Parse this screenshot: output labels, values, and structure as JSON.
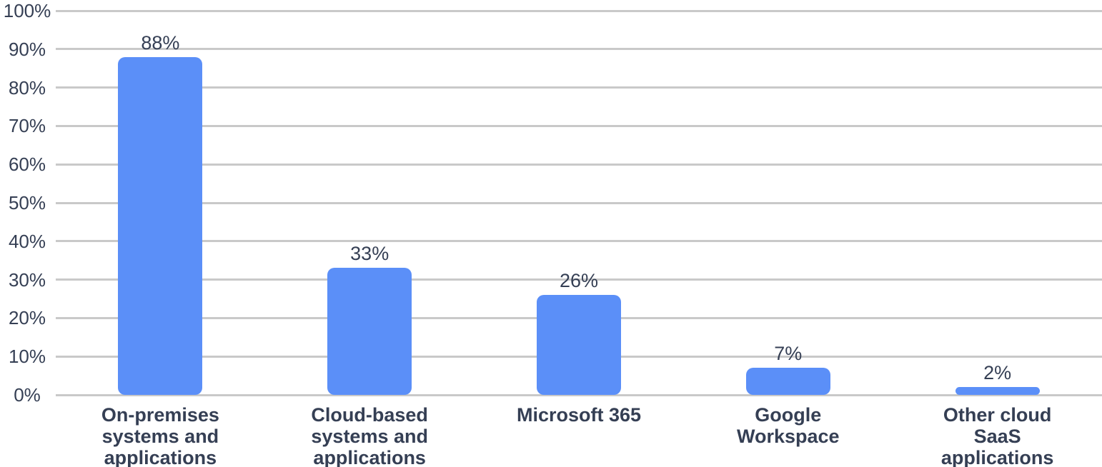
{
  "chart_data": {
    "type": "bar",
    "title": "",
    "xlabel": "",
    "ylabel": "",
    "categories": [
      "On-premises\nsystems and\napplications",
      "Cloud-based\nsystems and\napplications",
      "Microsoft 365",
      "Google\nWorkspace",
      "Other cloud\nSaaS\napplications"
    ],
    "values": [
      88,
      33,
      26,
      7,
      2
    ],
    "value_labels": [
      "88%",
      "33%",
      "26%",
      "7%",
      "2%"
    ],
    "y_ticks": [
      "0%",
      "10%",
      "20%",
      "30%",
      "40%",
      "50%",
      "60%",
      "70%",
      "80%",
      "90%",
      "100%"
    ],
    "ylim": [
      0,
      100
    ],
    "grid": true,
    "legend_position": "none"
  },
  "colors": {
    "bar_fill": "#5B8FF8",
    "gridline": "#C9C9C9",
    "axis_text": "#353F54",
    "label_text": "#353F54",
    "background": "#FFFFFF"
  }
}
